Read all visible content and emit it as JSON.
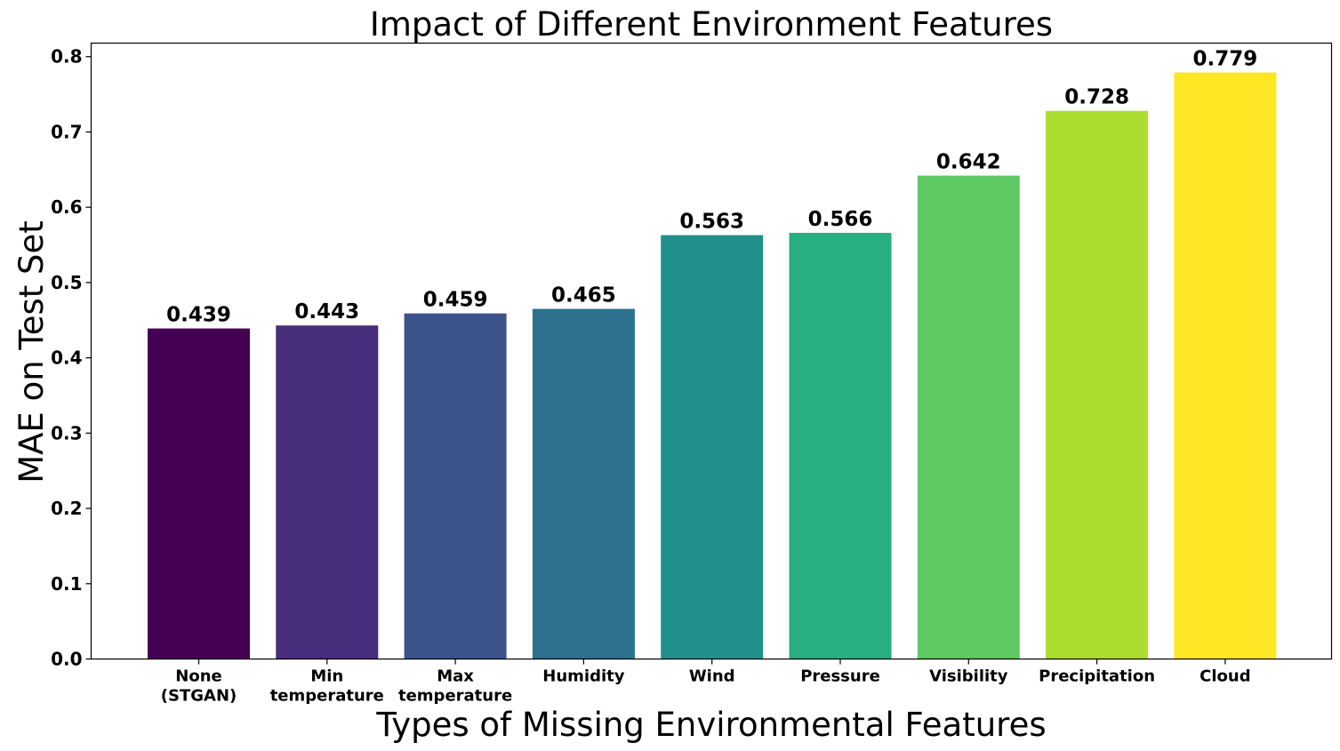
{
  "chart_data": {
    "type": "bar",
    "title": "Impact of Different Environment Features",
    "xlabel": "Types of Missing Environmental Features",
    "ylabel": "MAE on Test Set",
    "ylim": [
      0,
      0.818
    ],
    "yticks": [
      0.0,
      0.1,
      0.2,
      0.3,
      0.4,
      0.5,
      0.6,
      0.7,
      0.8
    ],
    "ytick_labels": [
      "0.0",
      "0.1",
      "0.2",
      "0.3",
      "0.4",
      "0.5",
      "0.6",
      "0.7",
      "0.8"
    ],
    "grid": false,
    "legend": "none",
    "categories": [
      [
        "None",
        "(STGAN)"
      ],
      [
        "Min",
        "temperature"
      ],
      [
        "Max",
        "temperature"
      ],
      [
        "Humidity"
      ],
      [
        "Wind"
      ],
      [
        "Pressure"
      ],
      [
        "Visibility"
      ],
      [
        "Precipitation"
      ],
      [
        "Cloud"
      ]
    ],
    "values": [
      0.439,
      0.443,
      0.459,
      0.465,
      0.563,
      0.566,
      0.642,
      0.728,
      0.779
    ],
    "value_labels": [
      "0.439",
      "0.443",
      "0.459",
      "0.465",
      "0.563",
      "0.566",
      "0.642",
      "0.728",
      "0.779"
    ],
    "colors": [
      "#440154",
      "#472d7b",
      "#3b528b",
      "#2c728e",
      "#21918c",
      "#28ae80",
      "#5ec962",
      "#addc30",
      "#fde725"
    ]
  }
}
